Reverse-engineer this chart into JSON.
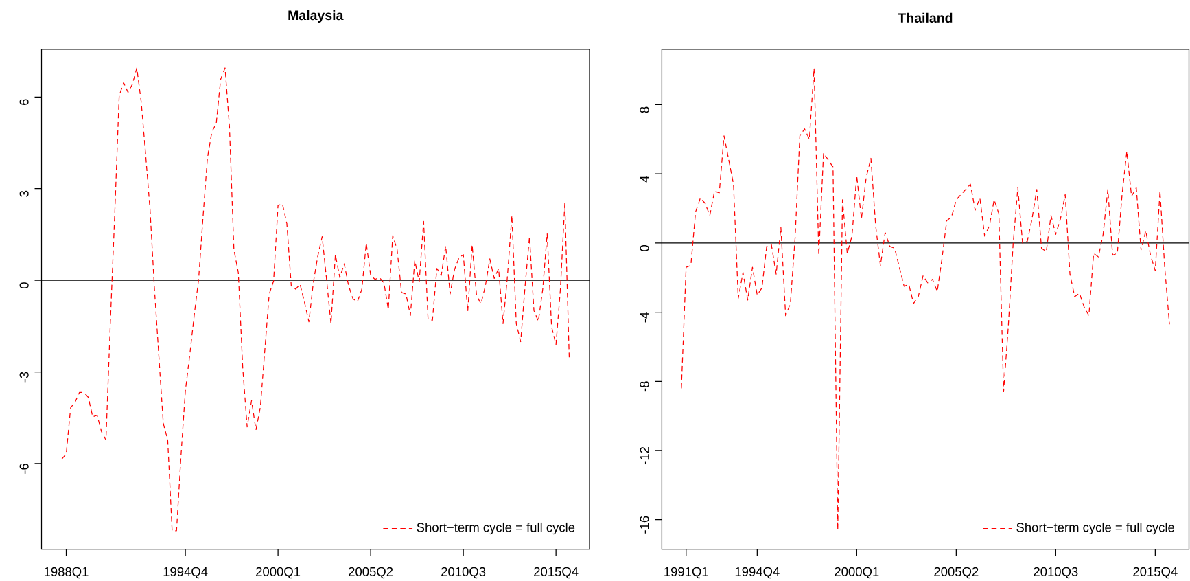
{
  "chart_data": [
    {
      "type": "line",
      "title": "Malaysia",
      "categories": [
        null,
        "1988Q1",
        null,
        null,
        null,
        null,
        null,
        null,
        null,
        null,
        null,
        null,
        null,
        null,
        null,
        null,
        null,
        null,
        null,
        null,
        null,
        null,
        null,
        null,
        null,
        null,
        null,
        null,
        "1994Q4",
        null,
        null,
        null,
        null,
        null,
        null,
        null,
        null,
        null,
        null,
        null,
        null,
        null,
        null,
        null,
        null,
        null,
        null,
        null,
        null,
        "2000Q1",
        null,
        null,
        null,
        null,
        null,
        null,
        null,
        null,
        null,
        null,
        null,
        null,
        null,
        null,
        null,
        null,
        null,
        null,
        null,
        null,
        "2005Q2",
        null,
        null,
        null,
        null,
        null,
        null,
        null,
        null,
        null,
        null,
        null,
        null,
        null,
        null,
        null,
        null,
        null,
        null,
        null,
        null,
        "2010Q3",
        null,
        null,
        null,
        null,
        null,
        null,
        null,
        null,
        null,
        null,
        null,
        null,
        null,
        null,
        null,
        null,
        null,
        null,
        null,
        null,
        "2015Q4",
        null,
        null,
        null
      ],
      "series": [
        {
          "name": "Short−term cycle = full cycle",
          "color": "#ff0000",
          "values": [
            -5.85,
            -5.68,
            -4.17,
            -3.99,
            -3.67,
            -3.67,
            -3.83,
            -4.47,
            -4.42,
            -4.96,
            -5.23,
            -1.37,
            2.2,
            6.04,
            6.47,
            6.15,
            6.42,
            6.95,
            5.83,
            4.1,
            2.3,
            -0.3,
            -2.5,
            -4.69,
            -5.23,
            -8.2,
            -8.2,
            -5.76,
            -3.62,
            -2.44,
            -1.15,
            0.03,
            2.07,
            4.0,
            4.86,
            5.13,
            6.58,
            6.95,
            5.02,
            1.0,
            0.25,
            -2.86,
            -4.8,
            -3.94,
            -4.9,
            -4.15,
            -2.3,
            -0.45,
            -0.02,
            2.45,
            2.5,
            1.86,
            -0.18,
            -0.29,
            -0.13,
            -0.72,
            -1.36,
            -0.08,
            0.78,
            1.43,
            0.03,
            -1.42,
            0.84,
            0.09,
            0.54,
            -0.18,
            -0.61,
            -0.7,
            -0.29,
            1.21,
            0.16,
            0.03,
            0.09,
            -0.08,
            -0.95,
            1.46,
            1.0,
            -0.4,
            -0.45,
            -1.15,
            0.65,
            -0.05,
            1.93,
            -1.26,
            -1.31,
            0.39,
            0.16,
            1.13,
            -0.45,
            0.35,
            0.73,
            0.84,
            -1.02,
            1.16,
            -0.5,
            -0.77,
            -0.18,
            0.7,
            0.06,
            0.38,
            -1.42,
            0.14,
            2.12,
            -1.42,
            -2.01,
            -0.18,
            1.43,
            -0.99,
            -1.34,
            -0.29,
            1.53,
            -1.52,
            -2.11,
            -0.29,
            2.53,
            -2.52
          ]
        }
      ],
      "ylim": [
        -8.8,
        7.56
      ],
      "yticks": [
        -6,
        -3,
        0,
        3,
        6
      ],
      "ref_lines": [
        {
          "axis": "y",
          "value": 0,
          "color": "#000000"
        }
      ],
      "legend": "bottom right",
      "line_style": "dashed"
    },
    {
      "type": "line",
      "title": "Thailand",
      "categories": [
        null,
        "1991Q1",
        null,
        null,
        null,
        null,
        null,
        null,
        null,
        null,
        null,
        null,
        null,
        null,
        null,
        null,
        "1994Q4",
        null,
        null,
        null,
        null,
        null,
        null,
        null,
        null,
        null,
        null,
        null,
        null,
        null,
        null,
        null,
        null,
        null,
        null,
        null,
        null,
        "2000Q1",
        null,
        null,
        null,
        null,
        null,
        null,
        null,
        null,
        null,
        null,
        null,
        null,
        null,
        null,
        null,
        null,
        null,
        null,
        null,
        null,
        "2005Q2",
        null,
        null,
        null,
        null,
        null,
        null,
        null,
        null,
        null,
        null,
        null,
        null,
        null,
        null,
        null,
        null,
        null,
        null,
        null,
        null,
        "2010Q3",
        null,
        null,
        null,
        null,
        null,
        null,
        null,
        null,
        null,
        null,
        null,
        null,
        null,
        null,
        null,
        null,
        null,
        null,
        null,
        null,
        "2015Q4",
        null,
        null,
        null
      ],
      "series": [
        {
          "name": "Short−term cycle = full cycle",
          "color": "#ff0000",
          "values": [
            -8.4,
            -1.4,
            -1.3,
            1.8,
            2.6,
            2.3,
            1.6,
            3.0,
            2.9,
            6.2,
            4.8,
            3.4,
            -3.2,
            -1.7,
            -3.3,
            -1.4,
            -3.0,
            -2.6,
            -0.2,
            -0.1,
            -1.8,
            0.9,
            -4.2,
            -3.5,
            0.3,
            6.2,
            6.6,
            6.0,
            10.1,
            -0.7,
            5.2,
            4.8,
            4.4,
            -16.6,
            2.5,
            -0.6,
            0.4,
            3.9,
            1.4,
            3.8,
            4.9,
            1.0,
            -1.3,
            0.6,
            -0.2,
            -0.3,
            -1.4,
            -2.5,
            -2.4,
            -3.5,
            -3.1,
            -1.9,
            -2.3,
            -2.1,
            -2.8,
            -0.9,
            1.3,
            1.5,
            2.5,
            2.8,
            3.1,
            3.4,
            1.9,
            2.6,
            0.4,
            1.0,
            2.5,
            1.7,
            -8.6,
            -4.8,
            -0.1,
            3.2,
            0.0,
            0.1,
            1.4,
            3.1,
            -0.3,
            -0.5,
            1.6,
            0.5,
            1.4,
            2.8,
            -1.8,
            -3.1,
            -2.9,
            -3.7,
            -4.2,
            -0.6,
            -0.8,
            0.5,
            3.1,
            -0.7,
            -0.6,
            2.8,
            5.3,
            2.7,
            3.2,
            -0.4,
            0.7,
            -0.7,
            -1.6,
            3.0,
            -1.4,
            -4.7
          ]
        }
      ],
      "ylim": [
        -17.7,
        11.2
      ],
      "yticks": [
        -16,
        -12,
        -8,
        -4,
        0,
        4,
        8
      ],
      "ref_lines": [
        {
          "axis": "y",
          "value": 0,
          "color": "#000000"
        }
      ],
      "legend": "bottom right",
      "line_style": "dashed"
    }
  ]
}
